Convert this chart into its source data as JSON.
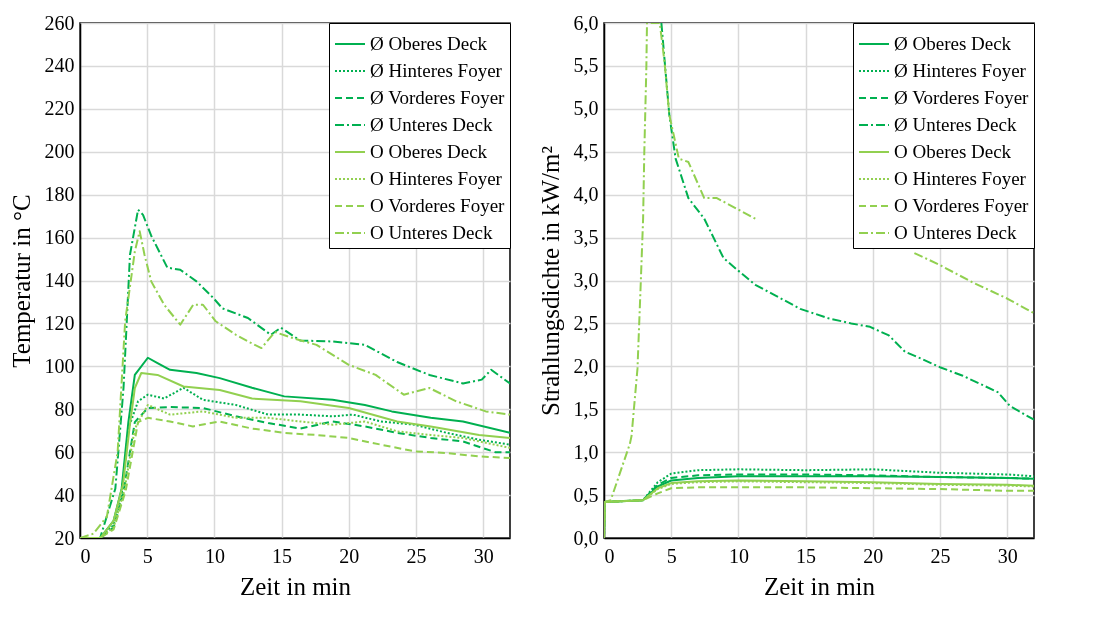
{
  "chart_data": [
    {
      "type": "line",
      "xlabel": "Zeit in min",
      "ylabel": "Temperatur in °C",
      "xlim": [
        0,
        32
      ],
      "xticks": [
        0,
        5,
        10,
        15,
        20,
        25,
        30
      ],
      "ylim": [
        20,
        260
      ],
      "yticks": [
        20,
        40,
        60,
        80,
        100,
        120,
        140,
        160,
        180,
        200,
        220,
        240,
        260
      ],
      "grid": true,
      "legend": "top right",
      "series": [
        {
          "name": "Ø Oberes Deck",
          "color": "#00b050",
          "line_style": "solid",
          "x": [
            0,
            1.5,
            2.5,
            3.1,
            3.6,
            4.08,
            5.05,
            5.77,
            6.7,
            8.67,
            10.4,
            12.8,
            15.2,
            18.8,
            21.2,
            23.2,
            26.1,
            28.5,
            32
          ],
          "values": [
            20,
            20,
            28,
            43,
            74,
            96,
            104,
            101.5,
            98.4,
            96.9,
            94.5,
            90,
            86,
            84.4,
            82,
            79,
            76,
            74.3,
            69
          ]
        },
        {
          "name": "Ø Hinteres Foyer",
          "color": "#00b050",
          "line_style": "dotted",
          "x": [
            0,
            1.5,
            2.5,
            3.1,
            3.6,
            4.32,
            5.05,
            6.26,
            7.7,
            9.15,
            11.6,
            14,
            16.4,
            18.8,
            20.3,
            22.4,
            24.9,
            27.3,
            29.7,
            32
          ],
          "values": [
            20,
            20,
            26,
            40,
            71,
            83.7,
            86.8,
            85,
            90,
            84.4,
            82,
            77.5,
            77.5,
            76.7,
            77.5,
            74.3,
            72.8,
            69,
            65.8,
            63.5
          ]
        },
        {
          "name": "Ø Vorderes Foyer",
          "color": "#00b050",
          "line_style": "dashed",
          "x": [
            0,
            1.5,
            2.5,
            3.2,
            4.08,
            5.05,
            6.7,
            9.15,
            11.6,
            14,
            16.4,
            18.8,
            21.2,
            23.6,
            26.1,
            28.5,
            30.9,
            32
          ],
          "values": [
            20,
            20,
            25,
            40,
            74,
            80.6,
            81,
            80.6,
            76.7,
            73.6,
            71,
            74.3,
            72,
            69,
            66.6,
            65,
            60,
            60
          ]
        },
        {
          "name": "Ø Unteres Deck",
          "color": "#00b050",
          "line_style": "dashdot",
          "x": [
            0,
            1.5,
            2.63,
            3.24,
            3.72,
            4.32,
            4.69,
            5.29,
            6.5,
            7.46,
            8.67,
            9.9,
            10.6,
            12.5,
            14.2,
            14.95,
            16.4,
            18.8,
            21.2,
            23.6,
            26,
            28.5,
            29.9,
            30.6,
            32
          ],
          "values": [
            20,
            20,
            43,
            90,
            152,
            173,
            170.6,
            161,
            146,
            145,
            139.6,
            132,
            127,
            122.5,
            114.7,
            118,
            112,
            111.6,
            110,
            102,
            96,
            92,
            93.8,
            98.4,
            92
          ]
        },
        {
          "name": "O Oberes Deck",
          "color": "#92d050",
          "line_style": "solid",
          "x": [
            0,
            1.5,
            2.5,
            3.2,
            3.7,
            4.08,
            4.56,
            5.77,
            7.7,
            10.4,
            12.8,
            16.4,
            20,
            23.6,
            26.1,
            29.7,
            32
          ],
          "values": [
            20,
            20,
            28,
            45,
            72,
            89.9,
            96.9,
            96,
            90.6,
            89,
            85,
            83.7,
            80.6,
            74.3,
            72,
            68,
            66.6
          ]
        },
        {
          "name": "O Hinteres Foyer",
          "color": "#92d050",
          "line_style": "dotted",
          "x": [
            0,
            1.5,
            2.5,
            3.3,
            4.08,
            5.05,
            6.7,
            9.15,
            11.6,
            14,
            16.4,
            18.8,
            21.2,
            23.6,
            26.1,
            28.5,
            32
          ],
          "values": [
            20,
            20,
            25,
            42,
            71,
            82,
            77.5,
            79,
            76,
            76,
            74.3,
            72.8,
            74.3,
            69.7,
            68,
            66.6,
            62
          ]
        },
        {
          "name": "O Vorderes Foyer",
          "color": "#92d050",
          "line_style": "dashed",
          "x": [
            0,
            1.5,
            2.5,
            3.4,
            4.32,
            5.05,
            6.7,
            8.4,
            10.4,
            12.8,
            15.2,
            17.6,
            20,
            22.4,
            24.9,
            27.3,
            29.7,
            32
          ],
          "values": [
            20,
            20,
            24,
            42,
            74,
            76,
            74.3,
            72,
            74.3,
            71,
            69,
            68,
            66.6,
            63.5,
            60.4,
            59.6,
            58,
            57.3
          ]
        },
        {
          "name": "O Unteres Deck",
          "color": "#92d050",
          "line_style": "dashdot",
          "x": [
            0,
            1,
            2,
            2.8,
            3.36,
            4.08,
            4.44,
            4.8,
            5.3,
            6.26,
            7.46,
            8.43,
            9.15,
            10.1,
            11.6,
            12.5,
            13.5,
            14.5,
            15.9,
            17.6,
            20,
            22,
            24.1,
            26,
            28,
            30.2,
            32
          ],
          "values": [
            20,
            22,
            30,
            60,
            121,
            153.5,
            163,
            152,
            139.6,
            128.7,
            119.4,
            128.7,
            128.7,
            121,
            114.7,
            111.6,
            108.5,
            116,
            113,
            110,
            100.7,
            96,
            86.8,
            89.9,
            83.7,
            79,
            77.5
          ]
        }
      ]
    },
    {
      "type": "line",
      "xlabel": "Zeit in min",
      "ylabel": "Strahlungsdichte in kW/m²",
      "xlim": [
        0,
        32
      ],
      "xticks": [
        0,
        5,
        10,
        15,
        20,
        25,
        30
      ],
      "ylim": [
        0,
        6
      ],
      "yticks": [
        {
          "value": 0,
          "label": "0,0"
        },
        {
          "value": 0.5,
          "label": "0,5"
        },
        {
          "value": 1,
          "label": "1,0"
        },
        {
          "value": 1.5,
          "label": "1,5"
        },
        {
          "value": 2,
          "label": "2,0"
        },
        {
          "value": 2.5,
          "label": "2,5"
        },
        {
          "value": 3,
          "label": "3,0"
        },
        {
          "value": 3.5,
          "label": "3,5"
        },
        {
          "value": 4,
          "label": "4,0"
        },
        {
          "value": 4.5,
          "label": "4,5"
        },
        {
          "value": 5,
          "label": "5,0"
        },
        {
          "value": 5.5,
          "label": "5,5"
        },
        {
          "value": 6,
          "label": "6,0"
        }
      ],
      "grid": true,
      "legend": "top right",
      "series": [
        {
          "name": "Ø Oberes Deck",
          "color": "#00b050",
          "line_style": "solid",
          "x": [
            0,
            0.05,
            2.9,
            4,
            5,
            7,
            10,
            15,
            20,
            25,
            30,
            32
          ],
          "values": [
            0,
            0.42,
            0.44,
            0.6,
            0.67,
            0.7,
            0.72,
            0.72,
            0.72,
            0.71,
            0.7,
            0.69
          ]
        },
        {
          "name": "Ø Hinteres Foyer",
          "color": "#00b050",
          "line_style": "dotted",
          "x": [
            0,
            0.05,
            2.9,
            4,
            5,
            7,
            10,
            15,
            20,
            25,
            30,
            32
          ],
          "values": [
            0,
            0.42,
            0.44,
            0.65,
            0.75,
            0.79,
            0.8,
            0.79,
            0.8,
            0.76,
            0.74,
            0.72
          ]
        },
        {
          "name": "Ø Vorderes Foyer",
          "color": "#00b050",
          "line_style": "dashed",
          "x": [
            0,
            0.05,
            2.9,
            4,
            5,
            7,
            10,
            15,
            20,
            25,
            30,
            32
          ],
          "values": [
            0,
            0.42,
            0.44,
            0.62,
            0.7,
            0.73,
            0.74,
            0.74,
            0.73,
            0.71,
            0.7,
            0.69
          ]
        },
        {
          "name": "Ø Unteres Deck",
          "color": "#00b050",
          "line_style": "dashdot",
          "x": [
            4.27,
            4.86,
            5.33,
            6.28,
            7.46,
            8.9,
            10.1,
            11.26,
            12.7,
            14.6,
            16.7,
            18.4,
            19.8,
            21.2,
            22.4,
            23.6,
            25,
            26.7,
            29.3,
            30.2,
            31.4,
            32
          ],
          "values": [
            6,
            4.93,
            4.42,
            3.96,
            3.72,
            3.26,
            3.1,
            2.95,
            2.83,
            2.67,
            2.56,
            2.5,
            2.46,
            2.36,
            2.17,
            2.09,
            1.99,
            1.89,
            1.7,
            1.54,
            1.43,
            1.38
          ]
        },
        {
          "name": "O Oberes Deck",
          "color": "#92d050",
          "line_style": "solid",
          "x": [
            0,
            0.05,
            2.9,
            4,
            5,
            7,
            10,
            15,
            20,
            25,
            30,
            32
          ],
          "values": [
            0,
            0.42,
            0.44,
            0.58,
            0.64,
            0.66,
            0.67,
            0.66,
            0.65,
            0.63,
            0.62,
            0.61
          ]
        },
        {
          "name": "O Hinteres Foyer",
          "color": "#92d050",
          "line_style": "dotted",
          "x": [
            0,
            0.05,
            2.9,
            4,
            5,
            7,
            10,
            15,
            20,
            25,
            30,
            32
          ],
          "values": [
            0,
            0.42,
            0.44,
            0.57,
            0.63,
            0.65,
            0.66,
            0.65,
            0.64,
            0.62,
            0.61,
            0.6
          ]
        },
        {
          "name": "O Vorderes Foyer",
          "color": "#92d050",
          "line_style": "dashed",
          "x": [
            0,
            0.05,
            2.9,
            4,
            5,
            7,
            10,
            15,
            20,
            25,
            30,
            32
          ],
          "values": [
            0,
            0.42,
            0.44,
            0.52,
            0.58,
            0.59,
            0.59,
            0.59,
            0.58,
            0.57,
            0.55,
            0.55
          ]
        },
        {
          "name": "O Unteres Deck",
          "color": "#92d050",
          "line_style": "dashdot",
          "x": [
            0,
            0.05,
            0.5,
            1.93,
            2.05,
            2.49,
            2.73,
            2.91,
            3,
            3.15,
            3.2,
            4.15,
            4.5,
            4.86,
            5.57,
            6.28,
            7.46,
            8.4,
            11.26,
            17,
            23.1,
            25,
            27.4,
            30,
            31.4,
            32
          ],
          "values": [
            0,
            0.42,
            0.44,
            1.1,
            1.19,
            1.97,
            2.95,
            3.72,
            4.5,
            5.47,
            6,
            6,
            5.55,
            4.93,
            4.42,
            4.38,
            3.96,
            3.96,
            3.72,
            null,
            3.32,
            3.18,
            2.98,
            2.79,
            2.67,
            2.62
          ]
        }
      ]
    }
  ]
}
